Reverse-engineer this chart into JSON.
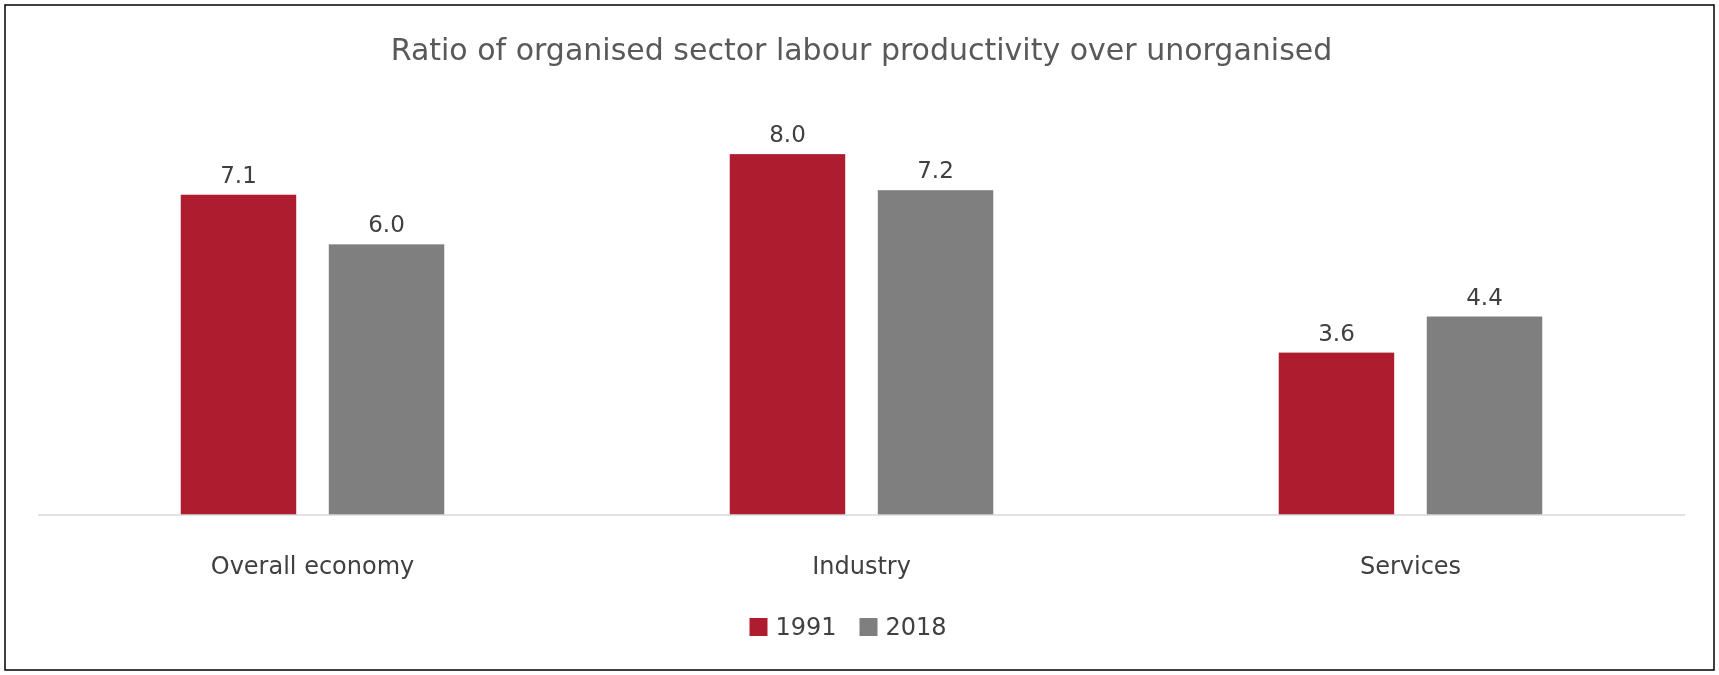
{
  "chart_data": {
    "type": "bar",
    "title": "Ratio of organised sector labour productivity over unorganised",
    "categories": [
      "Overall economy",
      "Industry",
      "Services"
    ],
    "series": [
      {
        "name": "1991",
        "color": "#ae1c2f",
        "values": [
          7.1,
          8.0,
          3.6
        ],
        "value_labels": [
          "7.1",
          "8.0",
          "3.6"
        ]
      },
      {
        "name": "2018",
        "color": "#7f7f7f",
        "values": [
          6.0,
          7.2,
          4.4
        ],
        "value_labels": [
          "6.0",
          "7.2",
          "4.4"
        ]
      }
    ],
    "legend": "bottom"
  }
}
